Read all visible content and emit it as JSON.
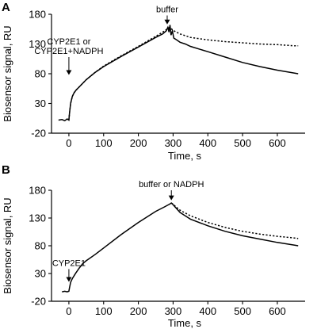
{
  "chart_data": [
    {
      "panel": "A",
      "type": "line",
      "xlabel": "Time, s",
      "ylabel": "Biosensor signal, RU",
      "xlim": [
        -50,
        680
      ],
      "ylim": [
        -20,
        180
      ],
      "xticks": [
        0,
        100,
        200,
        300,
        400,
        500,
        600
      ],
      "yticks": [
        -20,
        30,
        80,
        130,
        180
      ],
      "annotations": [
        {
          "lines": [
            "CYP2E1 or",
            "CYP2E1+NADPH"
          ],
          "x": 0,
          "y_from": 108,
          "y_to": 78
        },
        {
          "lines": [
            "buffer"
          ],
          "x": 283,
          "y_from": 178,
          "y_to": 163
        }
      ],
      "series": [
        {
          "style": "solid",
          "x": [
            -30,
            -20,
            -12,
            -5,
            0,
            2,
            5,
            10,
            15,
            20,
            30,
            50,
            75,
            100,
            150,
            200,
            250,
            270,
            280,
            285,
            288,
            291,
            294,
            298,
            302,
            310,
            320,
            335,
            350,
            400,
            450,
            500,
            550,
            600,
            650,
            660
          ],
          "y": [
            2,
            3,
            1,
            4,
            2,
            15,
            30,
            42,
            48,
            52,
            58,
            70,
            82,
            92,
            109,
            125,
            141,
            147,
            152,
            158,
            150,
            162,
            145,
            152,
            140,
            137,
            133,
            130,
            126,
            117,
            108,
            99,
            92,
            86,
            81,
            80
          ]
        },
        {
          "style": "dotted",
          "x": [
            0,
            2,
            5,
            10,
            15,
            20,
            30,
            50,
            75,
            100,
            150,
            200,
            250,
            270,
            280,
            290,
            300,
            320,
            350,
            400,
            450,
            500,
            550,
            600,
            650,
            660
          ],
          "y": [
            2,
            15,
            30,
            42,
            48,
            52,
            58,
            70,
            82,
            93,
            110,
            126,
            143,
            150,
            154,
            158,
            153,
            147,
            141,
            137,
            134,
            132,
            130,
            129,
            127,
            127
          ]
        }
      ]
    },
    {
      "panel": "B",
      "type": "line",
      "xlabel": "Time, s",
      "ylabel": "Biosensor signal, RU",
      "xlim": [
        -50,
        680
      ],
      "ylim": [
        -20,
        180
      ],
      "xticks": [
        0,
        100,
        200,
        300,
        400,
        500,
        600
      ],
      "yticks": [
        -20,
        30,
        80,
        130,
        180
      ],
      "annotations": [
        {
          "lines": [
            "CYP2E1"
          ],
          "x": 0,
          "y_from": 38,
          "y_to": 15
        },
        {
          "lines": [
            "buffer or NADPH"
          ],
          "x": 295,
          "y_from": 180,
          "y_to": 162
        }
      ],
      "series": [
        {
          "style": "solid",
          "x": [
            -20,
            -12,
            -5,
            0,
            2,
            5,
            10,
            15,
            20,
            30,
            40,
            50,
            75,
            100,
            150,
            200,
            250,
            275,
            290,
            295,
            300,
            310,
            320,
            335,
            350,
            400,
            450,
            500,
            550,
            600,
            650,
            660
          ],
          "y": [
            -3,
            -2,
            -3,
            -2,
            5,
            14,
            21,
            26,
            31,
            40,
            48,
            53,
            64,
            76,
            100,
            122,
            142,
            150,
            155,
            157,
            154,
            147,
            140,
            134,
            128,
            116,
            106,
            98,
            92,
            86,
            81,
            80
          ]
        },
        {
          "style": "dotted",
          "x": [
            295,
            300,
            310,
            320,
            335,
            350,
            400,
            450,
            500,
            550,
            600,
            650,
            660
          ],
          "y": [
            157,
            155,
            149,
            144,
            139,
            134,
            122,
            113,
            106,
            101,
            97,
            94,
            93
          ]
        }
      ]
    }
  ]
}
